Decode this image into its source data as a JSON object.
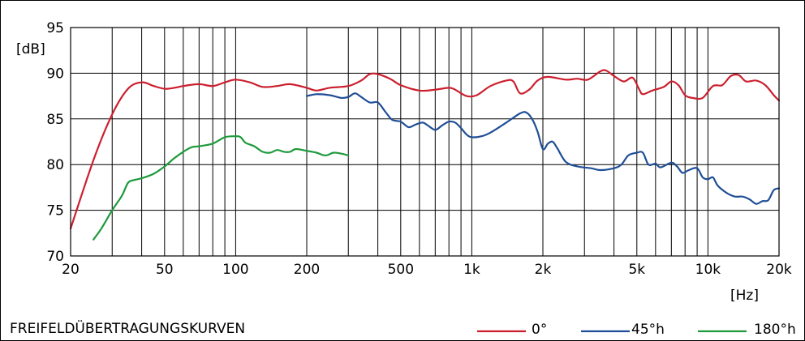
{
  "chart_data": {
    "type": "line",
    "title": "FREIFELDÜBERTRAGUNGSKURVEN",
    "ylabel": "[dB]",
    "xlabel": "[Hz]",
    "xscale": "log",
    "xlim": [
      20,
      20000
    ],
    "ylim": [
      70,
      95
    ],
    "grid": true,
    "legend_position": "bottom-right",
    "xticks": [
      {
        "value": 20,
        "label": "20"
      },
      {
        "value": 50,
        "label": "50"
      },
      {
        "value": 100,
        "label": "100"
      },
      {
        "value": 200,
        "label": "200"
      },
      {
        "value": 500,
        "label": "500"
      },
      {
        "value": 1000,
        "label": "1k"
      },
      {
        "value": 2000,
        "label": "2k"
      },
      {
        "value": 5000,
        "label": "5k"
      },
      {
        "value": 10000,
        "label": "10k"
      },
      {
        "value": 20000,
        "label": "20k"
      }
    ],
    "xgrid": [
      20,
      30,
      40,
      50,
      60,
      70,
      80,
      90,
      100,
      200,
      300,
      400,
      500,
      600,
      700,
      800,
      900,
      1000,
      2000,
      3000,
      4000,
      5000,
      6000,
      7000,
      8000,
      9000,
      10000,
      20000
    ],
    "yticks": [
      70,
      75,
      80,
      85,
      90,
      95
    ],
    "series": [
      {
        "name": "0°",
        "color": "#cc1f2e",
        "points": [
          [
            20,
            73.0
          ],
          [
            25,
            80.5
          ],
          [
            30,
            85.5
          ],
          [
            35,
            88.3
          ],
          [
            40,
            89.0
          ],
          [
            45,
            88.6
          ],
          [
            50,
            88.3
          ],
          [
            55,
            88.4
          ],
          [
            60,
            88.6
          ],
          [
            70,
            88.8
          ],
          [
            80,
            88.6
          ],
          [
            90,
            89.0
          ],
          [
            100,
            89.3
          ],
          [
            115,
            89.0
          ],
          [
            130,
            88.5
          ],
          [
            150,
            88.6
          ],
          [
            170,
            88.8
          ],
          [
            200,
            88.4
          ],
          [
            220,
            88.1
          ],
          [
            250,
            88.4
          ],
          [
            300,
            88.6
          ],
          [
            340,
            89.2
          ],
          [
            370,
            89.9
          ],
          [
            400,
            89.9
          ],
          [
            450,
            89.4
          ],
          [
            500,
            88.7
          ],
          [
            600,
            88.1
          ],
          [
            700,
            88.2
          ],
          [
            800,
            88.4
          ],
          [
            850,
            88.2
          ],
          [
            950,
            87.5
          ],
          [
            1050,
            87.6
          ],
          [
            1200,
            88.6
          ],
          [
            1400,
            89.2
          ],
          [
            1500,
            89.1
          ],
          [
            1600,
            87.8
          ],
          [
            1750,
            88.2
          ],
          [
            1900,
            89.2
          ],
          [
            2100,
            89.6
          ],
          [
            2500,
            89.3
          ],
          [
            2800,
            89.4
          ],
          [
            3100,
            89.3
          ],
          [
            3500,
            90.2
          ],
          [
            3700,
            90.3
          ],
          [
            4000,
            89.7
          ],
          [
            4400,
            89.1
          ],
          [
            4800,
            89.5
          ],
          [
            5100,
            88.3
          ],
          [
            5300,
            87.7
          ],
          [
            5800,
            88.1
          ],
          [
            6500,
            88.5
          ],
          [
            7000,
            89.1
          ],
          [
            7500,
            88.7
          ],
          [
            8000,
            87.6
          ],
          [
            8600,
            87.3
          ],
          [
            9500,
            87.3
          ],
          [
            10500,
            88.6
          ],
          [
            11500,
            88.7
          ],
          [
            12500,
            89.7
          ],
          [
            13500,
            89.8
          ],
          [
            14500,
            89.1
          ],
          [
            16000,
            89.2
          ],
          [
            17500,
            88.7
          ],
          [
            19000,
            87.6
          ],
          [
            20000,
            87.0
          ]
        ]
      },
      {
        "name": "45°h",
        "color": "#1f4e96",
        "points": [
          [
            200,
            87.5
          ],
          [
            220,
            87.7
          ],
          [
            250,
            87.6
          ],
          [
            280,
            87.3
          ],
          [
            300,
            87.4
          ],
          [
            320,
            87.8
          ],
          [
            340,
            87.4
          ],
          [
            370,
            86.8
          ],
          [
            400,
            86.8
          ],
          [
            430,
            85.8
          ],
          [
            460,
            84.9
          ],
          [
            500,
            84.7
          ],
          [
            540,
            84.1
          ],
          [
            580,
            84.4
          ],
          [
            620,
            84.6
          ],
          [
            650,
            84.3
          ],
          [
            700,
            83.8
          ],
          [
            750,
            84.3
          ],
          [
            800,
            84.7
          ],
          [
            850,
            84.6
          ],
          [
            900,
            84.0
          ],
          [
            950,
            83.3
          ],
          [
            1000,
            83.0
          ],
          [
            1100,
            83.1
          ],
          [
            1200,
            83.5
          ],
          [
            1400,
            84.6
          ],
          [
            1600,
            85.6
          ],
          [
            1700,
            85.7
          ],
          [
            1800,
            85.0
          ],
          [
            1900,
            83.6
          ],
          [
            2000,
            81.7
          ],
          [
            2100,
            82.3
          ],
          [
            2200,
            82.5
          ],
          [
            2300,
            81.8
          ],
          [
            2500,
            80.3
          ],
          [
            2800,
            79.8
          ],
          [
            3200,
            79.6
          ],
          [
            3500,
            79.4
          ],
          [
            4000,
            79.6
          ],
          [
            4300,
            80.0
          ],
          [
            4600,
            81.0
          ],
          [
            5000,
            81.3
          ],
          [
            5300,
            81.3
          ],
          [
            5600,
            80.0
          ],
          [
            6000,
            80.1
          ],
          [
            6300,
            79.7
          ],
          [
            7000,
            80.2
          ],
          [
            7400,
            79.8
          ],
          [
            7800,
            79.1
          ],
          [
            8300,
            79.4
          ],
          [
            9000,
            79.6
          ],
          [
            9500,
            78.6
          ],
          [
            10000,
            78.4
          ],
          [
            10500,
            78.6
          ],
          [
            11000,
            77.7
          ],
          [
            12000,
            76.9
          ],
          [
            13000,
            76.5
          ],
          [
            14000,
            76.5
          ],
          [
            15000,
            76.2
          ],
          [
            16000,
            75.7
          ],
          [
            17000,
            76.0
          ],
          [
            18000,
            76.1
          ],
          [
            19000,
            77.2
          ],
          [
            20000,
            77.4
          ]
        ]
      },
      {
        "name": "180°h",
        "color": "#1e9a3c",
        "points": [
          [
            25,
            71.8
          ],
          [
            27,
            73.0
          ],
          [
            30,
            75.0
          ],
          [
            33,
            76.6
          ],
          [
            35,
            78.0
          ],
          [
            37,
            78.3
          ],
          [
            40,
            78.5
          ],
          [
            45,
            79.0
          ],
          [
            50,
            79.8
          ],
          [
            55,
            80.7
          ],
          [
            60,
            81.4
          ],
          [
            65,
            81.9
          ],
          [
            70,
            82.0
          ],
          [
            80,
            82.3
          ],
          [
            90,
            83.0
          ],
          [
            100,
            83.1
          ],
          [
            105,
            83.0
          ],
          [
            110,
            82.4
          ],
          [
            120,
            82.0
          ],
          [
            130,
            81.4
          ],
          [
            140,
            81.3
          ],
          [
            150,
            81.6
          ],
          [
            160,
            81.4
          ],
          [
            170,
            81.4
          ],
          [
            180,
            81.7
          ],
          [
            200,
            81.5
          ],
          [
            220,
            81.3
          ],
          [
            240,
            81.0
          ],
          [
            260,
            81.3
          ],
          [
            280,
            81.2
          ],
          [
            300,
            81.0
          ]
        ]
      }
    ]
  }
}
